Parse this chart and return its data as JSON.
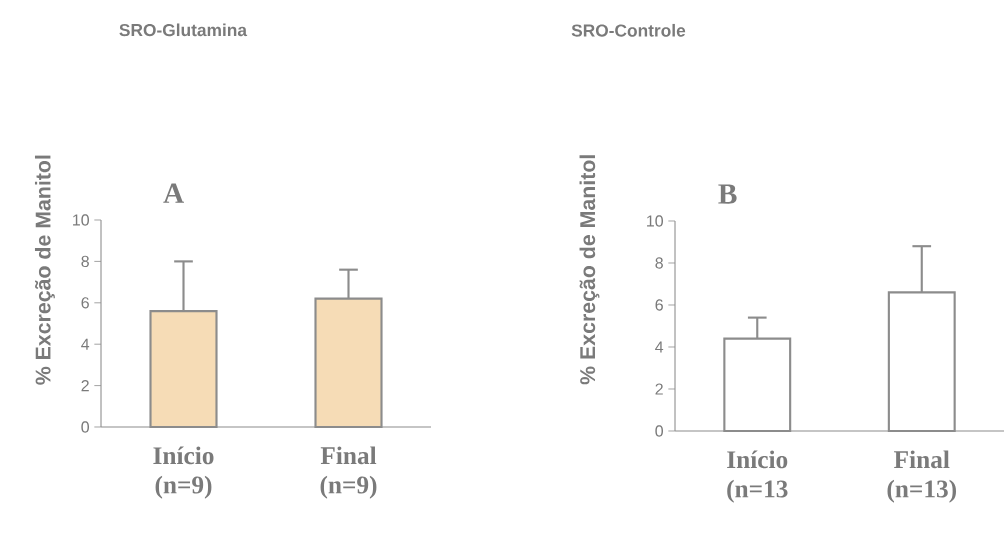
{
  "chart_data": [
    {
      "type": "bar",
      "title": "SRO-Glutamina",
      "ylabel": "% Excreção de Manitol",
      "annotations": [
        "A"
      ],
      "categories": [
        "Início (n=9)",
        "Final (n=9)"
      ],
      "values": [
        5.6,
        6.2
      ],
      "errors": [
        [
          5.6,
          8.0
        ],
        [
          6.2,
          7.6
        ]
      ],
      "color": "#f6dcb6",
      "ylim": [
        0,
        10
      ],
      "yticks": [
        0,
        2,
        4,
        6,
        8,
        10
      ]
    },
    {
      "type": "bar",
      "title": "SRO-Controle",
      "ylabel": "% Excreção de Manitol",
      "annotations": [
        "B"
      ],
      "categories": [
        "Início (n=13",
        "Final (n=13)"
      ],
      "values": [
        4.4,
        6.6
      ],
      "errors": [
        [
          4.4,
          5.4
        ],
        [
          6.6,
          8.8
        ]
      ],
      "color": "#ffffff",
      "ylim": [
        0,
        10
      ],
      "yticks": [
        0,
        2,
        4,
        6,
        8,
        10
      ]
    }
  ]
}
